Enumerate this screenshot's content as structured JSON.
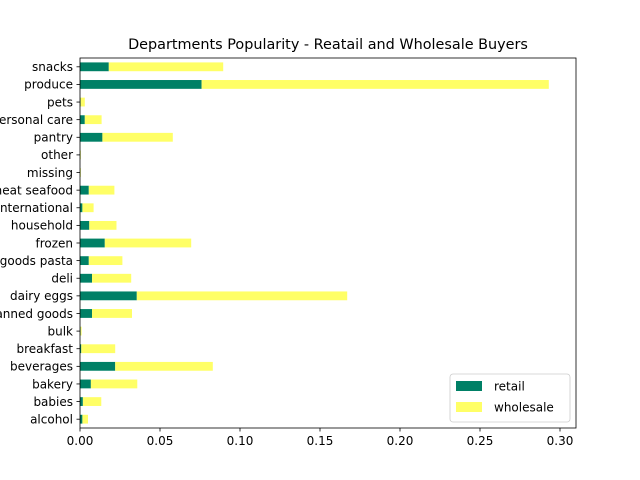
{
  "chart_data": {
    "type": "bar",
    "orientation": "horizontal",
    "stacked": true,
    "title": "Departments Popularity - Reatail and Wholesale Buyers",
    "xlabel": "",
    "ylabel": "",
    "xlim": [
      0,
      0.31
    ],
    "xticks": [
      0.0,
      0.05,
      0.1,
      0.15,
      0.2,
      0.25,
      0.3
    ],
    "xtick_labels": [
      "0.00",
      "0.05",
      "0.10",
      "0.15",
      "0.20",
      "0.25",
      "0.30"
    ],
    "grid": false,
    "legend_position": "bottom-right",
    "categories": [
      "alcohol",
      "babies",
      "bakery",
      "beverages",
      "breakfast",
      "bulk",
      "canned goods",
      "dairy eggs",
      "deli",
      "dry goods pasta",
      "frozen",
      "household",
      "international",
      "meat seafood",
      "missing",
      "other",
      "pantry",
      "personal care",
      "pets",
      "produce",
      "snacks"
    ],
    "series": [
      {
        "name": "retail",
        "color": "#008066",
        "values": [
          0.0015,
          0.0018,
          0.0068,
          0.022,
          0.0008,
          0.0004,
          0.0075,
          0.0355,
          0.0075,
          0.0055,
          0.0155,
          0.0058,
          0.0015,
          0.0055,
          0.0002,
          0.0002,
          0.014,
          0.003,
          0.0004,
          0.076,
          0.018
        ]
      },
      {
        "name": "wholesale",
        "color": "#ffff66",
        "values": [
          0.0035,
          0.0115,
          0.029,
          0.061,
          0.0212,
          0.0006,
          0.025,
          0.1315,
          0.0245,
          0.021,
          0.054,
          0.017,
          0.007,
          0.016,
          0.0003,
          0.0003,
          0.044,
          0.0105,
          0.0026,
          0.217,
          0.0715
        ]
      }
    ]
  }
}
